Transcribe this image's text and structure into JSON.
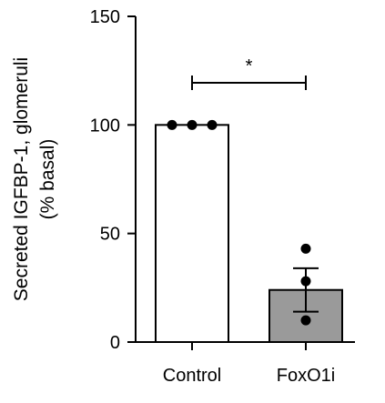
{
  "chart_data": {
    "type": "bar",
    "categories": [
      "Control",
      "FoxO1i"
    ],
    "values": [
      100,
      24
    ],
    "error_upper": [
      null,
      34
    ],
    "error_lower": [
      null,
      14
    ],
    "points": [
      [
        100,
        100,
        100
      ],
      [
        43,
        28,
        10
      ]
    ],
    "bar_colors": [
      "#ffffff",
      "#9a9a9a"
    ],
    "ylabel_line1": "Secreted IGFBP-1, glomeruli",
    "ylabel_line2": "(% basal)",
    "xlabel": "",
    "ylim": [
      0,
      150
    ],
    "yticks": [
      0,
      50,
      100,
      150
    ],
    "ytick_labels": [
      "0",
      "50",
      "100",
      "150"
    ],
    "significance": {
      "between": [
        "Control",
        "FoxO1i"
      ],
      "label": "*"
    },
    "grid": false,
    "legend": "none"
  }
}
